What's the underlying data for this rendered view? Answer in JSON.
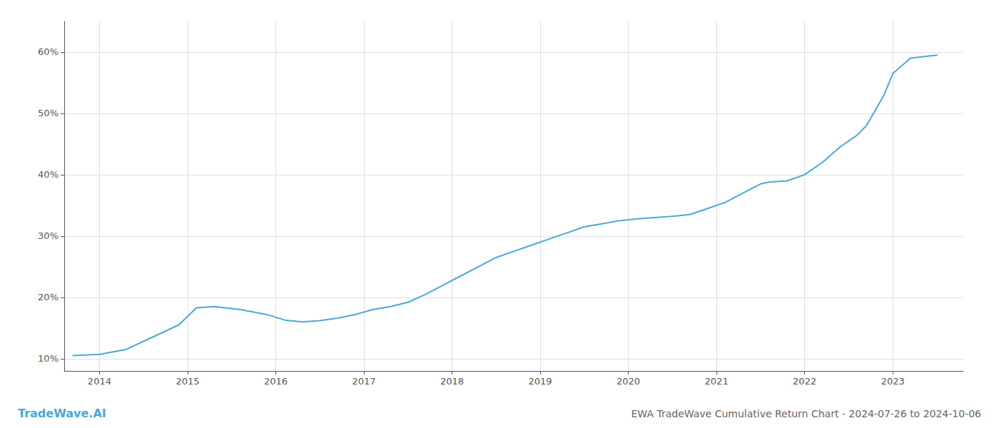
{
  "chart_data": {
    "type": "line",
    "title": "EWA TradeWave Cumulative Return Chart - 2024-07-26 to 2024-10-06",
    "annotations": [
      {
        "text": "TradeWave.AI",
        "color": "#4aa8d8"
      }
    ],
    "x": [
      2013.7,
      2014.0,
      2014.3,
      2014.6,
      2014.9,
      2015.1,
      2015.3,
      2015.6,
      2015.9,
      2016.1,
      2016.3,
      2016.5,
      2016.7,
      2016.9,
      2017.1,
      2017.3,
      2017.5,
      2017.7,
      2017.9,
      2018.1,
      2018.3,
      2018.5,
      2018.7,
      2018.9,
      2019.1,
      2019.3,
      2019.5,
      2019.7,
      2019.9,
      2020.1,
      2020.3,
      2020.5,
      2020.7,
      2020.9,
      2021.1,
      2021.3,
      2021.5,
      2021.6,
      2021.8,
      2022.0,
      2022.2,
      2022.4,
      2022.5,
      2022.6,
      2022.7,
      2022.8,
      2022.9,
      2023.0,
      2023.2,
      2023.5
    ],
    "values": [
      10.5,
      10.7,
      11.5,
      13.5,
      15.5,
      18.3,
      18.5,
      18.0,
      17.2,
      16.3,
      16.0,
      16.2,
      16.6,
      17.2,
      18.0,
      18.5,
      19.2,
      20.5,
      22.0,
      23.5,
      25.0,
      26.5,
      27.5,
      28.5,
      29.5,
      30.5,
      31.5,
      32.0,
      32.5,
      32.8,
      33.0,
      33.2,
      33.5,
      34.5,
      35.5,
      37.0,
      38.5,
      38.8,
      39.0,
      40.0,
      42.0,
      44.5,
      45.5,
      46.5,
      48.0,
      50.5,
      53.0,
      56.5,
      59.0,
      59.5
    ],
    "color": "#4aa8d8",
    "xlim": [
      2013.6,
      2023.8
    ],
    "ylim": [
      8,
      65
    ],
    "xticks": [
      2014,
      2015,
      2016,
      2017,
      2018,
      2019,
      2020,
      2021,
      2022,
      2023
    ],
    "yticks": [
      {
        "value": 10,
        "label": "10%"
      },
      {
        "value": 20,
        "label": "20%"
      },
      {
        "value": 30,
        "label": "30%"
      },
      {
        "value": 40,
        "label": "40%"
      },
      {
        "value": 50,
        "label": "50%"
      },
      {
        "value": 60,
        "label": "60%"
      }
    ],
    "grid": true
  }
}
